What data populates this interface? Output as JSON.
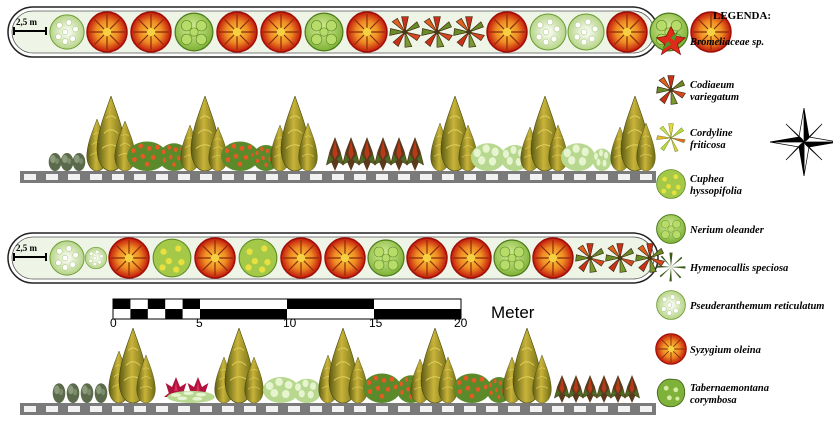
{
  "legend": {
    "title": "LEGENDA:",
    "items": [
      {
        "lines": [
          "Bromeliaceae sp."
        ],
        "icon": "bromeliad-icon"
      },
      {
        "lines": [
          "Codiaeum",
          "variegatum"
        ],
        "icon": "codiaeum-icon"
      },
      {
        "lines": [
          "Cordyline",
          "friticosa"
        ],
        "icon": "cordyline-icon"
      },
      {
        "lines": [
          "Cuphea",
          "hyssopifolia"
        ],
        "icon": "cuphea-icon"
      },
      {
        "lines": [
          "Nerium oleander"
        ],
        "icon": "nerium-icon"
      },
      {
        "lines": [
          "Hymenocallis speciosa"
        ],
        "icon": "hymenocallis-icon"
      },
      {
        "lines": [
          "Pseuderanthemum reticulatum"
        ],
        "icon": "pseuderanthemum-icon"
      },
      {
        "lines": [
          "Syzygium oleina"
        ],
        "icon": "syzygium-icon"
      },
      {
        "lines": [
          "Tabernaemontana",
          "corymbosa"
        ],
        "icon": "tabernaemontana-icon"
      }
    ]
  },
  "plan_dimension": "2,5 m",
  "scale_bar": {
    "ticks": [
      "0",
      "5",
      "10",
      "15",
      "20"
    ],
    "unit": "Meter"
  },
  "compass": {
    "icon": "compass-rose-icon"
  },
  "colors": {
    "syzygium": "#e8641a",
    "syzygium_edge": "#c0180c",
    "syzygium_center": "#f2c230",
    "cordyline_green": "#9ccc45",
    "conifer": "#9a8a18",
    "shrub_green": "#6a9a30",
    "road_gray": "#7a7a7a"
  }
}
